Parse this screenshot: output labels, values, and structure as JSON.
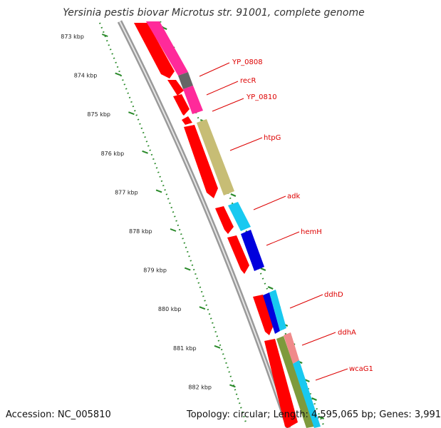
{
  "title": "Yersinia pestis biovar Microtus str. 91001, complete genome",
  "accession": "Accession: NC_005810",
  "summary": "Topology: circular; Length: 4,595,065 bp; Genes: 3,991",
  "ruler": [
    {
      "label": "873 kbp",
      "kbp": 873
    },
    {
      "label": "874 kbp",
      "kbp": 874
    },
    {
      "label": "875 kbp",
      "kbp": 875
    },
    {
      "label": "876 kbp",
      "kbp": 876
    },
    {
      "label": "877 kbp",
      "kbp": 877
    },
    {
      "label": "878 kbp",
      "kbp": 878
    },
    {
      "label": "879 kbp",
      "kbp": 879
    },
    {
      "label": "880 kbp",
      "kbp": 880
    },
    {
      "label": "881 kbp",
      "kbp": 881
    },
    {
      "label": "882 kbp",
      "kbp": 882
    }
  ],
  "gene_labels": [
    "YP_0808",
    "recR",
    "YP_0810",
    "htpG",
    "adk",
    "hemH",
    "ddhD",
    "ddhA",
    "wcaG1"
  ],
  "colors": {
    "cds": "#ff0000",
    "magenta": "#ff2a9a",
    "gray": "#666666",
    "khaki": "#c7bd75",
    "cyan": "#18c9f0",
    "blue": "#0000dd",
    "olive": "#7e9a3c",
    "pink": "#f08a8a",
    "label": "#dd0000",
    "tick": "#2a8a2a",
    "backbone": "#888888"
  }
}
